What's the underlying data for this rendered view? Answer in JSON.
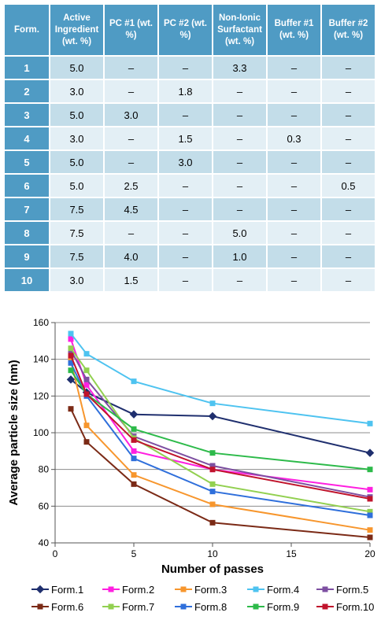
{
  "table": {
    "headers": [
      "Form.",
      "Active Ingredient (wt. %)",
      "PC #1 (wt. %)",
      "PC #2 (wt. %)",
      "Non-Ionic Surfactant (wt. %)",
      "Buffer #1 (wt. %)",
      "Buffer #2 (wt. %)"
    ],
    "rows": [
      [
        "1",
        "5.0",
        "–",
        "–",
        "3.3",
        "–",
        "–"
      ],
      [
        "2",
        "3.0",
        "–",
        "1.8",
        "–",
        "–",
        "–"
      ],
      [
        "3",
        "5.0",
        "3.0",
        "–",
        "–",
        "–",
        "–"
      ],
      [
        "4",
        "3.0",
        "–",
        "1.5",
        "–",
        "0.3",
        "–"
      ],
      [
        "5",
        "5.0",
        "–",
        "3.0",
        "–",
        "–",
        "–"
      ],
      [
        "6",
        "5.0",
        "2.5",
        "–",
        "–",
        "–",
        "0.5"
      ],
      [
        "7",
        "7.5",
        "4.5",
        "–",
        "–",
        "–",
        "–"
      ],
      [
        "8",
        "7.5",
        "–",
        "–",
        "5.0",
        "–",
        "–"
      ],
      [
        "9",
        "7.5",
        "4.0",
        "–",
        "1.0",
        "–",
        "–"
      ],
      [
        "10",
        "3.0",
        "1.5",
        "–",
        "–",
        "–",
        "–"
      ]
    ]
  },
  "chart_data": {
    "type": "line",
    "title": "",
    "xlabel": "Number of passes",
    "ylabel": "Average particle size (nm)",
    "xlim": [
      0,
      20
    ],
    "ylim": [
      40,
      160
    ],
    "xticks": [
      0,
      5,
      10,
      15,
      20
    ],
    "yticks": [
      40,
      60,
      80,
      100,
      120,
      140,
      160
    ],
    "grid": "horizontal",
    "legend_position": "bottom",
    "x": [
      1,
      2,
      5,
      10,
      20
    ],
    "series": [
      {
        "name": "Form.1",
        "color": "#1f2f6e",
        "marker": "diamond",
        "values": [
          129,
          122,
          110,
          109,
          89
        ]
      },
      {
        "name": "Form.2",
        "color": "#ff1fe0",
        "marker": "square",
        "values": [
          151,
          126,
          90,
          80,
          69
        ]
      },
      {
        "name": "Form.3",
        "color": "#f7962d",
        "marker": "square",
        "values": [
          139,
          104,
          77,
          61,
          47
        ]
      },
      {
        "name": "Form.4",
        "color": "#4ec3f0",
        "marker": "square",
        "values": [
          154,
          143,
          128,
          116,
          105
        ]
      },
      {
        "name": "Form.5",
        "color": "#7d4fa1",
        "marker": "square",
        "values": [
          145,
          129,
          98,
          82,
          65
        ]
      },
      {
        "name": "Form.6",
        "color": "#7b2a16",
        "marker": "square",
        "values": [
          113,
          95,
          72,
          51,
          43
        ]
      },
      {
        "name": "Form.7",
        "color": "#92d050",
        "marker": "square",
        "values": [
          146,
          134,
          97,
          72,
          57
        ]
      },
      {
        "name": "Form.8",
        "color": "#2f6fdb",
        "marker": "square",
        "values": [
          138,
          120,
          86,
          68,
          55
        ]
      },
      {
        "name": "Form.9",
        "color": "#2dba4a",
        "marker": "square",
        "values": [
          134,
          121,
          102,
          89,
          80
        ]
      },
      {
        "name": "Form.10",
        "color": "#c0142c",
        "marker": "square",
        "values": [
          142,
          121,
          96,
          80,
          64
        ]
      }
    ]
  }
}
